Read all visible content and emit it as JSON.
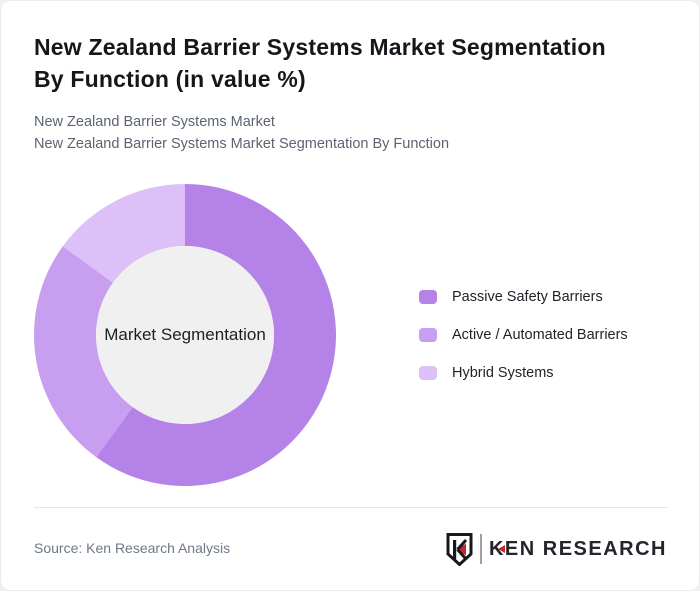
{
  "header": {
    "title_line1": "New Zealand Barrier Systems Market Segmentation",
    "title_line2": "By Function (in value %)",
    "subtitle_line1": "New Zealand Barrier Systems Market",
    "subtitle_line2": "New Zealand Barrier Systems Market Segmentation By Function"
  },
  "chart_data": {
    "type": "pie",
    "variant": "donut",
    "title": "New Zealand Barrier Systems Market Segmentation By Function (in value %)",
    "center_label": "Market Segmentation",
    "labels": [
      "Passive Safety Barriers",
      "Active / Automated Barriers",
      "Hybrid Systems"
    ],
    "values": [
      60,
      25,
      15
    ],
    "colors": [
      "#b583e8",
      "#c89ef0",
      "#ddc0f7"
    ],
    "center_fill": "#f0f0f0",
    "start_angle_deg": 0,
    "clockwise": true,
    "inner_radius_ratio": 0.59,
    "legend_position": "right",
    "data_labels_shown": false
  },
  "footer": {
    "source_text": "Source: Ken Research Analysis",
    "logo": {
      "monogram": "K",
      "wordmark": "KEN RESEARCH",
      "accent_color": "#c9252c",
      "ink_color": "#17181c"
    }
  }
}
